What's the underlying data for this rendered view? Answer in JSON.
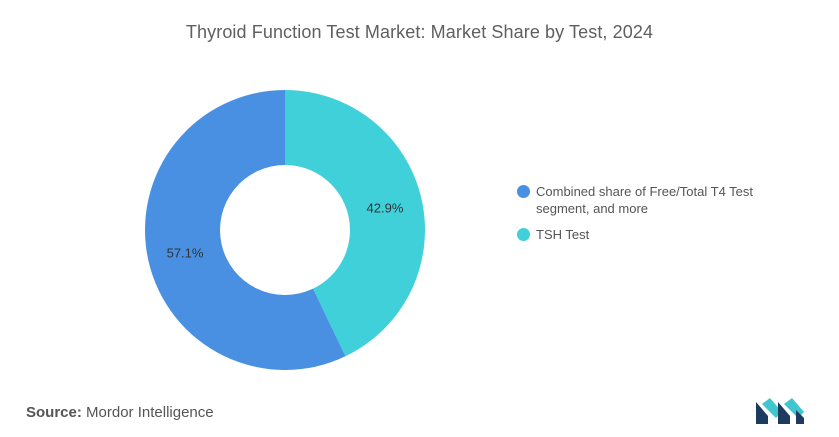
{
  "chart_data": {
    "type": "pie",
    "title": "Thyroid Function Test Market: Market Share by Test, 2024",
    "series": [
      {
        "name": "Combined share of Free/Total T4 Test segment, and more",
        "value": 57.1,
        "label": "57.1%",
        "color": "#4a90e2"
      },
      {
        "name": "TSH Test",
        "value": 42.9,
        "label": "42.9%",
        "color": "#40d0da"
      }
    ],
    "legend_position": "right",
    "donut": true
  },
  "footer": {
    "source_label": "Source:",
    "source_value": "Mordor Intelligence"
  },
  "logo": {
    "icon": "mordor-intelligence-logo-icon",
    "colors": [
      "#1e3a5f",
      "#3fc6cf"
    ]
  }
}
